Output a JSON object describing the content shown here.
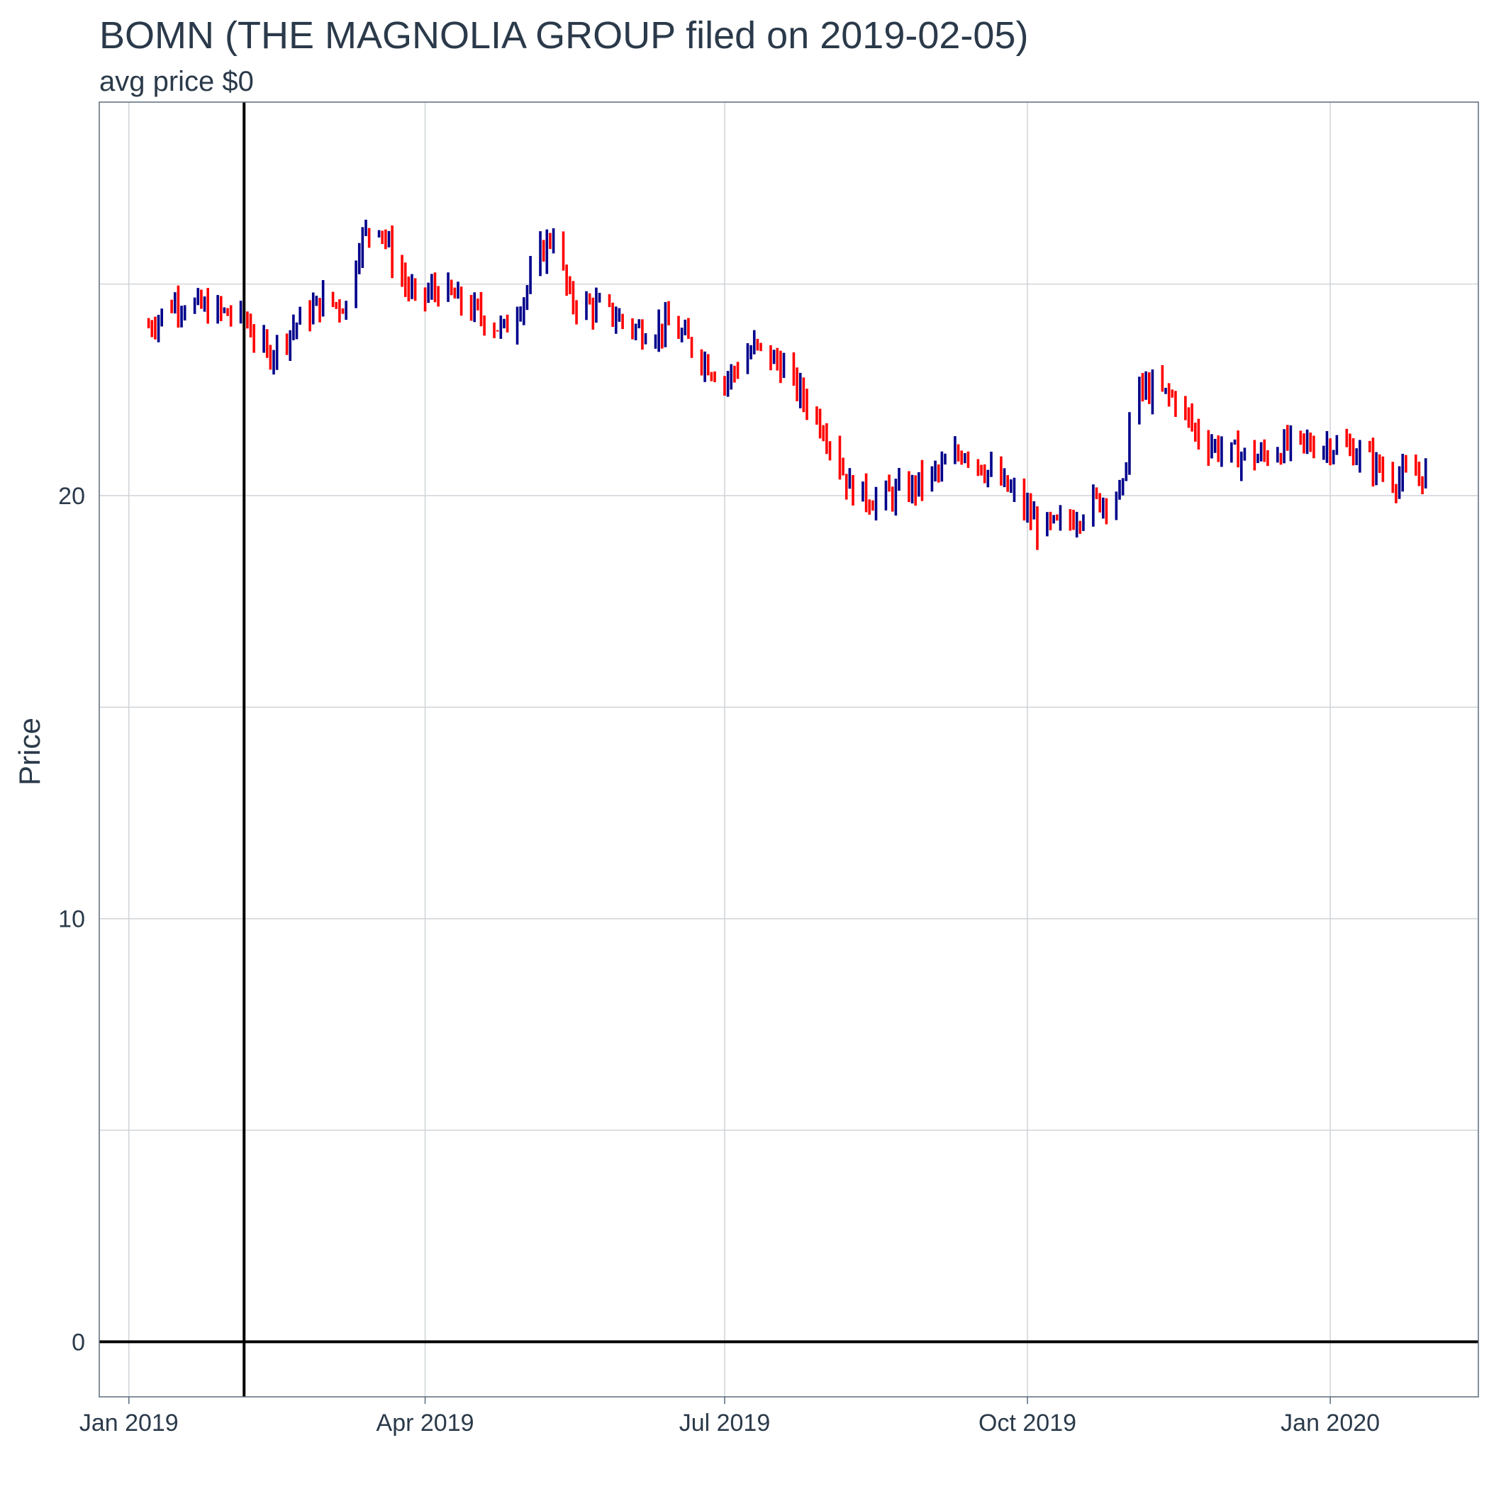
{
  "chart_data": {
    "type": "bar",
    "title": "BOMN (THE MAGNOLIA GROUP filed on 2019-02-05)",
    "subtitle": "avg price $0",
    "xlabel": "",
    "ylabel": "Price",
    "ylim": [
      -1.3,
      29.3
    ],
    "xlim": [
      "2018-12-23",
      "2020-02-15"
    ],
    "x_ticks": [
      {
        "date": "2019-01-01",
        "label": "Jan 2019"
      },
      {
        "date": "2019-04-01",
        "label": "Apr 2019"
      },
      {
        "date": "2019-07-01",
        "label": "Jul 2019"
      },
      {
        "date": "2019-10-01",
        "label": "Oct 2019"
      },
      {
        "date": "2020-01-01",
        "label": "Jan 2020"
      }
    ],
    "y_ticks": [
      {
        "value": 0,
        "label": "0"
      },
      {
        "value": 10,
        "label": "10"
      },
      {
        "value": 20,
        "label": "20"
      }
    ],
    "y_minor": [
      5,
      15,
      25
    ],
    "filed_date": "2019-02-05",
    "hline": 0,
    "grid": true,
    "colors": {
      "up": "#00008b",
      "down": "#ff0000",
      "ref": "#000000",
      "grid": "#d0d4d8"
    },
    "anchors": [
      [
        "2019-01-07",
        24.0
      ],
      [
        "2019-01-15",
        24.6
      ],
      [
        "2019-01-25",
        24.4
      ],
      [
        "2019-02-05",
        24.2
      ],
      [
        "2019-02-12",
        23.3
      ],
      [
        "2019-02-20",
        24.0
      ],
      [
        "2019-03-01",
        24.6
      ],
      [
        "2019-03-08",
        24.5
      ],
      [
        "2019-03-12",
        26.0
      ],
      [
        "2019-03-18",
        26.5
      ],
      [
        "2019-03-22",
        25.6
      ],
      [
        "2019-03-29",
        24.6
      ],
      [
        "2019-04-05",
        24.9
      ],
      [
        "2019-04-15",
        24.4
      ],
      [
        "2019-04-25",
        23.9
      ],
      [
        "2019-05-01",
        24.7
      ],
      [
        "2019-05-06",
        25.7
      ],
      [
        "2019-05-10",
        26.2
      ],
      [
        "2019-05-15",
        24.6
      ],
      [
        "2019-05-25",
        24.4
      ],
      [
        "2019-06-05",
        23.9
      ],
      [
        "2019-06-15",
        24.0
      ],
      [
        "2019-06-25",
        23.2
      ],
      [
        "2019-07-01",
        22.7
      ],
      [
        "2019-07-10",
        23.5
      ],
      [
        "2019-07-18",
        23.1
      ],
      [
        "2019-07-25",
        22.3
      ],
      [
        "2019-08-01",
        21.5
      ],
      [
        "2019-08-08",
        20.2
      ],
      [
        "2019-08-15",
        19.9
      ],
      [
        "2019-08-25",
        20.1
      ],
      [
        "2019-09-05",
        20.6
      ],
      [
        "2019-09-12",
        21.1
      ],
      [
        "2019-09-20",
        20.5
      ],
      [
        "2019-09-27",
        20.0
      ],
      [
        "2019-10-05",
        19.2
      ],
      [
        "2019-10-12",
        19.3
      ],
      [
        "2019-10-20",
        19.8
      ],
      [
        "2019-10-30",
        20.1
      ],
      [
        "2019-11-02",
        22.5
      ],
      [
        "2019-11-08",
        22.5
      ],
      [
        "2019-11-15",
        22.3
      ],
      [
        "2019-11-22",
        21.4
      ],
      [
        "2019-12-01",
        21.0
      ],
      [
        "2019-12-10",
        20.9
      ],
      [
        "2019-12-20",
        21.2
      ],
      [
        "2020-01-01",
        21.2
      ],
      [
        "2020-01-10",
        21.0
      ],
      [
        "2020-01-20",
        20.4
      ],
      [
        "2020-01-30",
        20.5
      ]
    ]
  }
}
